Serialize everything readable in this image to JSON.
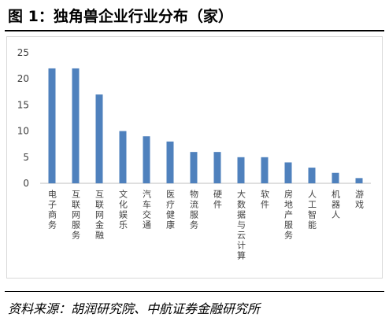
{
  "header": {
    "title": "图 1：独角兽企业行业分布（家）"
  },
  "footer": {
    "source": "资料来源：胡润研究院、中航证券金融研究所"
  },
  "chart_data": {
    "type": "bar",
    "categories": [
      "电子商务",
      "互联网服务",
      "互联网金融",
      "文化娱乐",
      "汽车交通",
      "医疗健康",
      "物流服务",
      "硬件",
      "大数据与云计算",
      "软件",
      "房地产服务",
      "人工智能",
      "机器人",
      "游戏"
    ],
    "values": [
      22,
      22,
      17,
      10,
      9,
      8,
      6,
      6,
      5,
      5,
      4,
      3,
      2,
      1
    ],
    "ylim": [
      0,
      25
    ],
    "yticks": [
      0,
      5,
      10,
      15,
      20,
      25
    ],
    "grid": false,
    "legend": "none",
    "bar_color": "#4f81bd",
    "axis_color": "#bfbfbf",
    "text_color": "#404040"
  }
}
